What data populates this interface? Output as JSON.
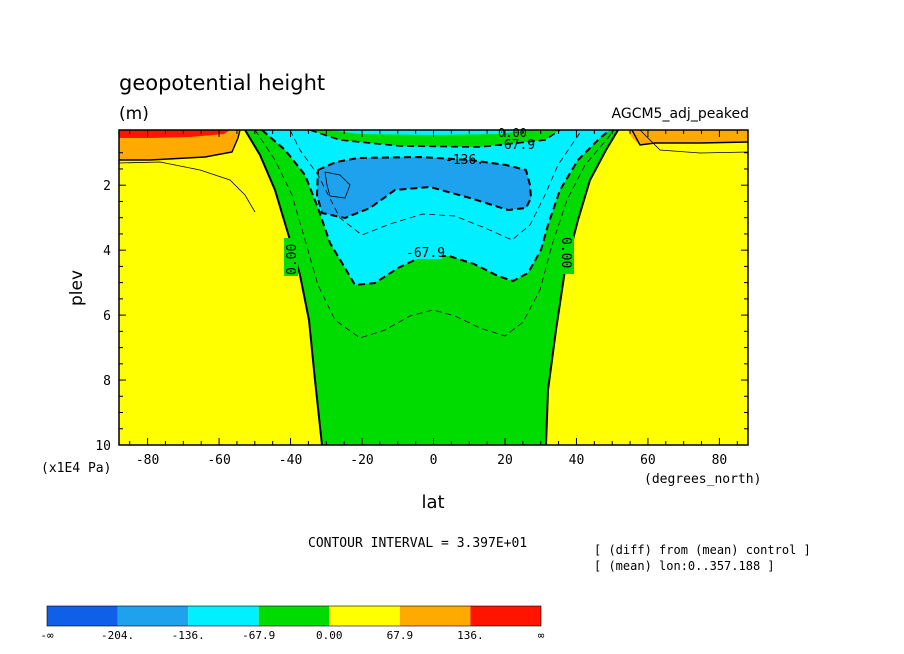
{
  "chart_data": {
    "type": "heatmap",
    "title": "geopotential height",
    "units": "(m)",
    "dataset_label": "AGCM5_adj_peaked",
    "xlabel": "lat",
    "x_unit_label": "(degrees_north)",
    "ylabel": "plev",
    "y_unit_label": "(x1E4 Pa)",
    "xlim": [
      -88,
      88
    ],
    "ylim": [
      10,
      0.3
    ],
    "x_ticks": [
      -80,
      -60,
      -40,
      -20,
      0,
      20,
      40,
      60,
      80
    ],
    "x_tick_labels": [
      "-80",
      "-60",
      "-40",
      "-20",
      "0",
      "20",
      "40",
      "60",
      "80"
    ],
    "y_ticks": [
      2,
      4,
      6,
      8,
      10
    ],
    "y_tick_labels": [
      "2",
      "4",
      "6",
      "8",
      "10"
    ],
    "contour_interval_text": "CONTOUR INTERVAL = 3.397E+01",
    "notes": [
      "[ (diff) from (mean) control ]",
      "[ (mean) lon:0..357.188 ]"
    ],
    "contour_labels": [
      "0.00",
      "0.00",
      "-67.9",
      "-67.9",
      "-136.",
      "0.00"
    ],
    "colorbar": {
      "colors": [
        "#0f5fe8",
        "#1ea2ee",
        "#00f0ff",
        "#00dc00",
        "#ffff00",
        "#ffaa00",
        "#ff1400"
      ],
      "labels": [
        "-∞",
        "-204.",
        "-136.",
        "-67.9",
        "0.00",
        "67.9",
        "136.",
        "∞"
      ]
    },
    "zones": [
      {
        "level": "0.00 to 67.9",
        "color": "#ffff00",
        "extent": "latitudes poleward of about 30-50 degrees"
      },
      {
        "level": "-67.9 to 0.00",
        "color": "#00dc00",
        "extent": "tropics from about -31 to 31 degrees, all levels"
      },
      {
        "level": "-136. to -67.9",
        "color": "#00f0ff",
        "extent": "upper tropics above about 5 (x1E4 Pa)"
      },
      {
        "level": "-204. to -136.",
        "color": "#1ea2ee",
        "extent": "about -33 to 27 degrees, 1 to 3 (x1E4 Pa)"
      },
      {
        "level": "67.9 to 136.",
        "color": "#ffaa00",
        "extent": "polar caps near top"
      },
      {
        "level": "above 136.",
        "color": "#ff1400",
        "extent": "southern polar cap at top"
      }
    ]
  }
}
